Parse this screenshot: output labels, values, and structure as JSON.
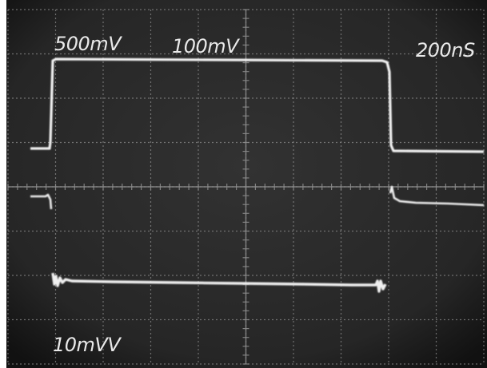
{
  "scope": {
    "labels": {
      "ch1_scale": "500mV",
      "ch2_scale": "100mV",
      "timebase": "200nS",
      "ch3_scale": "10mVV"
    },
    "colors": {
      "screen": "#272727",
      "screen_edge": "#101010",
      "graticule": "#8a8a8a",
      "trace": "#f2f2f2"
    }
  }
}
